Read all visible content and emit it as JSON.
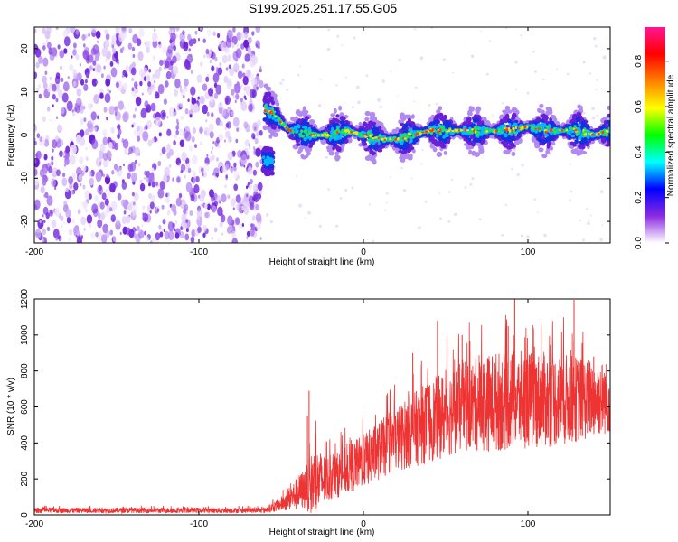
{
  "title": "S199.2025.251.17.55.G05",
  "chart_data": [
    {
      "type": "heatmap",
      "name": "spectrogram",
      "xlabel": "Height of straight line (km)",
      "ylabel": "Frequency (Hz)",
      "xlim": [
        -200,
        150
      ],
      "ylim": [
        -25,
        25
      ],
      "xticks": [
        -200,
        -100,
        0,
        100
      ],
      "yticks": [
        -20,
        -10,
        0,
        10,
        20
      ],
      "xtick_labels": [
        "-200",
        "-100",
        "0",
        "100"
      ],
      "ytick_labels": [
        "-20",
        "-10",
        "0",
        "10",
        "20"
      ],
      "noise_region_x": [
        -200,
        -62
      ],
      "ridge": [
        {
          "x": -60,
          "y": 6
        },
        {
          "x": -55,
          "y": 5
        },
        {
          "x": -50,
          "y": 3
        },
        {
          "x": -45,
          "y": 1
        },
        {
          "x": -40,
          "y": 1
        },
        {
          "x": -30,
          "y": 0
        },
        {
          "x": -20,
          "y": 0
        },
        {
          "x": -10,
          "y": 1
        },
        {
          "x": 0,
          "y": 0
        },
        {
          "x": 10,
          "y": -1
        },
        {
          "x": 20,
          "y": -1
        },
        {
          "x": 30,
          "y": 0
        },
        {
          "x": 40,
          "y": 1
        },
        {
          "x": 50,
          "y": 1
        },
        {
          "x": 60,
          "y": 1
        },
        {
          "x": 70,
          "y": 1
        },
        {
          "x": 80,
          "y": 1
        },
        {
          "x": 90,
          "y": 1
        },
        {
          "x": 100,
          "y": 2
        },
        {
          "x": 110,
          "y": 1
        },
        {
          "x": 120,
          "y": 1
        },
        {
          "x": 130,
          "y": 1
        },
        {
          "x": 140,
          "y": 0
        },
        {
          "x": 150,
          "y": 1
        }
      ],
      "secondary_feature": {
        "x": -58,
        "y": -6
      },
      "colorbar": {
        "label": "Normalized spectral amplitude",
        "range": [
          0,
          0.95
        ],
        "ticks": [
          0,
          0.2,
          0.4,
          0.6,
          0.8
        ],
        "tick_labels": [
          "0.0",
          "0.2",
          "0.4",
          "0.6",
          "0.8"
        ],
        "colors": [
          "#ffffff",
          "#8a2be2",
          "#0000ff",
          "#00ffff",
          "#00ff00",
          "#ffff00",
          "#ff8000",
          "#ff0000",
          "#ff1493"
        ]
      }
    },
    {
      "type": "line",
      "name": "snr",
      "xlabel": "Height of straight line (km)",
      "ylabel": "SNR (10 * v/v)",
      "xlim": [
        -200,
        150
      ],
      "ylim": [
        0,
        1200
      ],
      "xticks": [
        -200,
        -100,
        0,
        100
      ],
      "yticks": [
        0,
        200,
        400,
        600,
        800,
        1000,
        1200
      ],
      "xtick_labels": [
        "-200",
        "-100",
        "0",
        "100"
      ],
      "ytick_labels": [
        "0",
        "200",
        "400",
        "600",
        "800",
        "1000",
        "1200"
      ],
      "color": "#ee3333",
      "envelope": [
        {
          "x": -200,
          "mean": 25,
          "spread": 15
        },
        {
          "x": -60,
          "mean": 25,
          "spread": 15
        },
        {
          "x": -50,
          "mean": 60,
          "spread": 40
        },
        {
          "x": -35,
          "mean": 150,
          "spread": 120
        },
        {
          "x": -30,
          "mean": 180,
          "spread": 200
        },
        {
          "x": -20,
          "mean": 200,
          "spread": 120
        },
        {
          "x": 0,
          "mean": 300,
          "spread": 150
        },
        {
          "x": 20,
          "mean": 420,
          "spread": 180
        },
        {
          "x": 40,
          "mean": 520,
          "spread": 230
        },
        {
          "x": 60,
          "mean": 600,
          "spread": 250
        },
        {
          "x": 80,
          "mean": 630,
          "spread": 280
        },
        {
          "x": 100,
          "mean": 640,
          "spread": 270
        },
        {
          "x": 120,
          "mean": 640,
          "spread": 260
        },
        {
          "x": 150,
          "mean": 650,
          "spread": 200
        }
      ],
      "spikes": [
        {
          "x": -33,
          "y": 690
        },
        {
          "x": -34,
          "y": 550
        },
        {
          "x": 30,
          "y": 900
        },
        {
          "x": 45,
          "y": 1080
        },
        {
          "x": 60,
          "y": 1000
        },
        {
          "x": 92,
          "y": 1200
        },
        {
          "x": 88,
          "y": 1050
        },
        {
          "x": 128,
          "y": 1195
        },
        {
          "x": 108,
          "y": 1060
        },
        {
          "x": 140,
          "y": 880
        }
      ]
    }
  ]
}
